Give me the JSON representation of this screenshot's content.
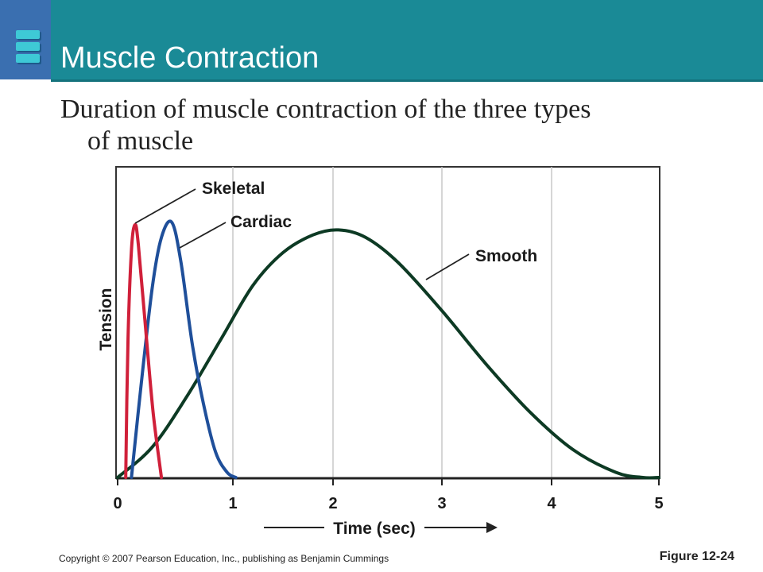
{
  "slide": {
    "title": "Muscle Contraction",
    "subtitle_line1": "Duration of muscle contraction of the three types",
    "subtitle_line2": "of muscle",
    "copyright": "Copyright © 2007 Pearson Education, Inc., publishing as Benjamin Cummings",
    "figure_label": "Figure 12-24"
  },
  "colors": {
    "header": "#1a8a96",
    "skeletal": "#d0203a",
    "cardiac": "#1f4f9a",
    "smooth": "#0d3a24"
  },
  "chart_data": {
    "type": "line",
    "xlabel": "Time (sec)",
    "ylabel": "Tension",
    "xlim": [
      0,
      5
    ],
    "x_ticks": [
      "0",
      "1",
      "2",
      "3",
      "4",
      "5"
    ],
    "grid": "vertical",
    "series": [
      {
        "name": "Skeletal",
        "color": "#d0203a",
        "points": [
          [
            0.07,
            0
          ],
          [
            0.09,
            0.55
          ],
          [
            0.12,
            0.9
          ],
          [
            0.15,
            1.0
          ],
          [
            0.18,
            0.92
          ],
          [
            0.25,
            0.55
          ],
          [
            0.31,
            0.25
          ],
          [
            0.38,
            0
          ]
        ]
      },
      {
        "name": "Cardiac",
        "color": "#1f4f9a",
        "points": [
          [
            0.12,
            0
          ],
          [
            0.2,
            0.35
          ],
          [
            0.3,
            0.75
          ],
          [
            0.38,
            0.95
          ],
          [
            0.47,
            1.01
          ],
          [
            0.55,
            0.85
          ],
          [
            0.65,
            0.52
          ],
          [
            0.75,
            0.28
          ],
          [
            0.85,
            0.1
          ],
          [
            0.95,
            0.02
          ],
          [
            1.03,
            0
          ]
        ]
      },
      {
        "name": "Smooth",
        "color": "#0d3a24",
        "points": [
          [
            0,
            0
          ],
          [
            0.3,
            0.12
          ],
          [
            0.6,
            0.32
          ],
          [
            0.9,
            0.55
          ],
          [
            1.2,
            0.76
          ],
          [
            1.5,
            0.89
          ],
          [
            1.8,
            0.96
          ],
          [
            2.05,
            0.98
          ],
          [
            2.3,
            0.95
          ],
          [
            2.6,
            0.85
          ],
          [
            3.0,
            0.66
          ],
          [
            3.4,
            0.45
          ],
          [
            3.8,
            0.26
          ],
          [
            4.2,
            0.11
          ],
          [
            4.6,
            0.02
          ],
          [
            4.85,
            0
          ],
          [
            5.0,
            0
          ]
        ]
      }
    ]
  }
}
